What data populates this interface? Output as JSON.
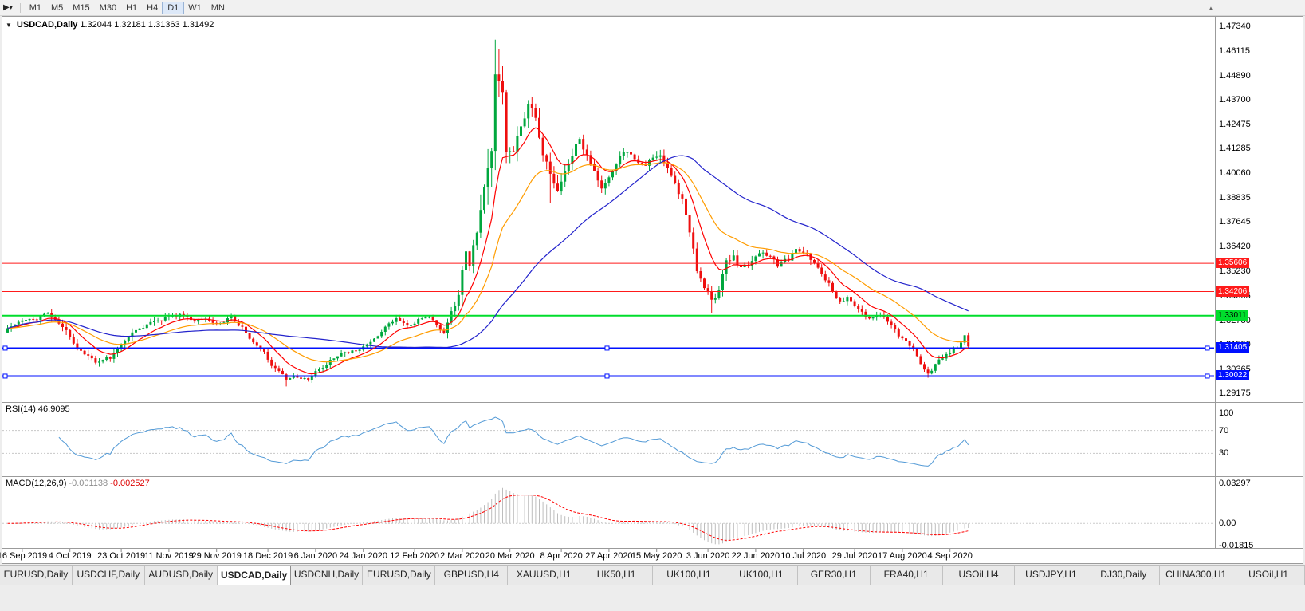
{
  "toolbar": {
    "timeframes": [
      "M1",
      "M5",
      "M15",
      "M30",
      "H1",
      "H4",
      "D1",
      "W1",
      "MN"
    ],
    "active_timeframe": "D1",
    "icons": {
      "handle": "▶",
      "caret": "▾",
      "overflow": "▲"
    }
  },
  "chart": {
    "menu_icon": "▼",
    "title": "USDCAD,Daily",
    "ohlc": {
      "open": "1.32044",
      "high": "1.32181",
      "low": "1.31363",
      "close": "1.31492"
    },
    "price_axis_labels": [
      "1.47340",
      "1.46115",
      "1.44890",
      "1.43700",
      "1.42475",
      "1.41285",
      "1.40060",
      "1.38835",
      "1.37645",
      "1.36420",
      "1.35230",
      "1.34005",
      "1.32780",
      "1.31590",
      "1.30365",
      "1.29175"
    ],
    "hlines": [
      {
        "label": "1.35606",
        "value": 1.35606,
        "color": "#ff1a1a",
        "width": 1,
        "text_color": "#ffffff",
        "handles": false
      },
      {
        "label": "1.34206",
        "value": 1.34206,
        "color": "#ff1a1a",
        "width": 1,
        "text_color": "#ffffff",
        "handles": false
      },
      {
        "label": "1.33011",
        "value": 1.33011,
        "color": "#00dd2c",
        "width": 2,
        "text_color": "#000000",
        "handles": false
      },
      {
        "label": "1.31405",
        "value": 1.31405,
        "color": "#0010ff",
        "width": 2,
        "text_color": "#ffffff",
        "handles": true
      },
      {
        "label": "1.30022",
        "value": 1.30022,
        "color": "#0010ff",
        "width": 2,
        "text_color": "#ffffff",
        "handles": true
      }
    ],
    "candles": {
      "count": 263,
      "up_color": "#00a73e",
      "down_color": "#ee0f0f",
      "last": {
        "open": 1.32044,
        "high": 1.32181,
        "low": 1.31363,
        "close": 1.31492
      },
      "wick_highs": [
        [
          125,
          1.376
        ],
        [
          133,
          1.4668
        ],
        [
          134,
          1.462
        ]
      ],
      "wick_lows": [
        [
          76,
          1.2951
        ],
        [
          148,
          1.386
        ],
        [
          192,
          1.3316
        ],
        [
          251,
          1.2994
        ]
      ],
      "anchors": [
        [
          0,
          1.3245,
          0.0045
        ],
        [
          4,
          1.329,
          0.0045
        ],
        [
          8,
          1.3268,
          0.0045
        ],
        [
          11,
          1.332,
          0.005
        ],
        [
          15,
          1.3262,
          0.005
        ],
        [
          19,
          1.314,
          0.005
        ],
        [
          24,
          1.3065,
          0.0045
        ],
        [
          28,
          1.3092,
          0.004
        ],
        [
          33,
          1.32,
          0.0045
        ],
        [
          38,
          1.3246,
          0.0045
        ],
        [
          43,
          1.3288,
          0.0045
        ],
        [
          47,
          1.33,
          0.004
        ],
        [
          51,
          1.3272,
          0.0038
        ],
        [
          54,
          1.3285,
          0.0035
        ],
        [
          58,
          1.3262,
          0.0035
        ],
        [
          61,
          1.329,
          0.0035
        ],
        [
          64,
          1.3246,
          0.0035
        ],
        [
          67,
          1.3162,
          0.004
        ],
        [
          70,
          1.3112,
          0.004
        ],
        [
          73,
          1.3038,
          0.004
        ],
        [
          76,
          1.2978,
          0.0035
        ],
        [
          79,
          1.2996,
          0.003
        ],
        [
          82,
          1.2988,
          0.003
        ],
        [
          85,
          1.3036,
          0.0035
        ],
        [
          88,
          1.308,
          0.0035
        ],
        [
          91,
          1.3106,
          0.0035
        ],
        [
          94,
          1.3122,
          0.0035
        ],
        [
          97,
          1.3146,
          0.0035
        ],
        [
          100,
          1.3186,
          0.0035
        ],
        [
          103,
          1.324,
          0.0035
        ],
        [
          106,
          1.3288,
          0.0035
        ],
        [
          109,
          1.3256,
          0.0035
        ],
        [
          112,
          1.3282,
          0.0035
        ],
        [
          115,
          1.33,
          0.0035
        ],
        [
          117,
          1.3262,
          0.004
        ],
        [
          119,
          1.3225,
          0.005
        ],
        [
          121,
          1.334,
          0.006
        ],
        [
          123,
          1.339,
          0.008
        ],
        [
          125,
          1.3655,
          0.015
        ],
        [
          126,
          1.358,
          0.014
        ],
        [
          128,
          1.3735,
          0.015
        ],
        [
          130,
          1.3985,
          0.018
        ],
        [
          132,
          1.416,
          0.02
        ],
        [
          133,
          1.456,
          0.022
        ],
        [
          134,
          1.448,
          0.019
        ],
        [
          135,
          1.443,
          0.017
        ],
        [
          136,
          1.41,
          0.016
        ],
        [
          138,
          1.4145,
          0.013
        ],
        [
          140,
          1.423,
          0.012
        ],
        [
          142,
          1.435,
          0.011
        ],
        [
          144,
          1.4275,
          0.01
        ],
        [
          146,
          1.409,
          0.01
        ],
        [
          148,
          1.3985,
          0.009
        ],
        [
          150,
          1.393,
          0.009
        ],
        [
          152,
          1.4015,
          0.008
        ],
        [
          154,
          1.412,
          0.0085
        ],
        [
          156,
          1.418,
          0.008
        ],
        [
          158,
          1.409,
          0.0075
        ],
        [
          160,
          1.404,
          0.007
        ],
        [
          162,
          1.3955,
          0.007
        ],
        [
          164,
          1.399,
          0.0065
        ],
        [
          166,
          1.407,
          0.0065
        ],
        [
          169,
          1.412,
          0.006
        ],
        [
          171,
          1.408,
          0.006
        ],
        [
          174,
          1.403,
          0.006
        ],
        [
          176,
          1.409,
          0.006
        ],
        [
          178,
          1.4115,
          0.006
        ],
        [
          180,
          1.402,
          0.006
        ],
        [
          182,
          1.395,
          0.006
        ],
        [
          184,
          1.388,
          0.0065
        ],
        [
          186,
          1.369,
          0.008
        ],
        [
          188,
          1.352,
          0.008
        ],
        [
          190,
          1.343,
          0.0075
        ],
        [
          192,
          1.339,
          0.007
        ],
        [
          194,
          1.3425,
          0.007
        ],
        [
          196,
          1.3555,
          0.008
        ],
        [
          198,
          1.3585,
          0.007
        ],
        [
          200,
          1.3535,
          0.006
        ],
        [
          202,
          1.3555,
          0.006
        ],
        [
          205,
          1.3615,
          0.0055
        ],
        [
          208,
          1.3585,
          0.0055
        ],
        [
          210,
          1.355,
          0.0055
        ],
        [
          213,
          1.358,
          0.0055
        ],
        [
          215,
          1.3618,
          0.0055
        ],
        [
          218,
          1.3592,
          0.005
        ],
        [
          221,
          1.3545,
          0.005
        ],
        [
          223,
          1.3495,
          0.005
        ],
        [
          225,
          1.3432,
          0.005
        ],
        [
          227,
          1.3385,
          0.005
        ],
        [
          229,
          1.3396,
          0.0045
        ],
        [
          231,
          1.3356,
          0.0045
        ],
        [
          233,
          1.331,
          0.0045
        ],
        [
          235,
          1.3286,
          0.0045
        ],
        [
          237,
          1.332,
          0.0045
        ],
        [
          239,
          1.329,
          0.0045
        ],
        [
          241,
          1.3246,
          0.0045
        ],
        [
          243,
          1.3196,
          0.0045
        ],
        [
          245,
          1.3166,
          0.0045
        ],
        [
          247,
          1.312,
          0.0045
        ],
        [
          249,
          1.3062,
          0.0045
        ],
        [
          251,
          1.302,
          0.004
        ],
        [
          253,
          1.3062,
          0.004
        ],
        [
          255,
          1.3092,
          0.004
        ],
        [
          257,
          1.3112,
          0.004
        ],
        [
          259,
          1.314,
          0.004
        ],
        [
          261,
          1.3186,
          0.0042
        ],
        [
          262,
          1.315,
          0.004
        ]
      ]
    },
    "moving_averages": [
      {
        "name": "ma-fast",
        "type": "ema",
        "period": 10,
        "color": "#ff0000"
      },
      {
        "name": "ma-mid",
        "type": "ema",
        "period": 25,
        "color": "#ff9c00"
      },
      {
        "name": "ma-slow",
        "type": "sma",
        "period": 55,
        "color": "#2323cc"
      }
    ],
    "date_labels": [
      {
        "text": "16 Sep 2019",
        "i": 4
      },
      {
        "text": "4 Oct 2019",
        "i": 17
      },
      {
        "text": "23 Oct 2019",
        "i": 31
      },
      {
        "text": "11 Nov 2019",
        "i": 44
      },
      {
        "text": "29 Nov 2019",
        "i": 57
      },
      {
        "text": "18 Dec 2019",
        "i": 71
      },
      {
        "text": "6 Jan 2020",
        "i": 84
      },
      {
        "text": "24 Jan 2020",
        "i": 97
      },
      {
        "text": "12 Feb 2020",
        "i": 111
      },
      {
        "text": "2 Mar 2020",
        "i": 124
      },
      {
        "text": "20 Mar 2020",
        "i": 137
      },
      {
        "text": "8 Apr 2020",
        "i": 151
      },
      {
        "text": "27 Apr 2020",
        "i": 164
      },
      {
        "text": "15 May 2020",
        "i": 177
      },
      {
        "text": "3 Jun 2020",
        "i": 191
      },
      {
        "text": "22 Jun 2020",
        "i": 204
      },
      {
        "text": "10 Jul 2020",
        "i": 217
      },
      {
        "text": "29 Jul 2020",
        "i": 231
      },
      {
        "text": "17 Aug 2020",
        "i": 244
      },
      {
        "text": "4 Sep 2020",
        "i": 257
      }
    ]
  },
  "rsi": {
    "label": "RSI(14)",
    "value": "46.9095",
    "period": 14,
    "axis_labels": [
      "100",
      "70",
      "30"
    ],
    "levels": [
      70,
      30
    ],
    "color": "#539ad6"
  },
  "macd": {
    "label": "MACD(12,26,9)",
    "main_value": "-0.001138",
    "signal_value": "-0.002527",
    "fast": 12,
    "slow": 26,
    "signal": 9,
    "axis_labels": [
      "0.03297",
      "0.00",
      "-0.01815"
    ],
    "hist_color": "#bdbdbd",
    "signal_color": "#ff0000"
  },
  "tabs": {
    "active_index": 3,
    "items": [
      "EURUSD,Daily",
      "USDCHF,Daily",
      "AUDUSD,Daily",
      "USDCAD,Daily",
      "USDCNH,Daily",
      "EURUSD,Daily",
      "GBPUSD,H4",
      "XAUUSD,H1",
      "HK50,H1",
      "UK100,H1",
      "UK100,H1",
      "GER30,H1",
      "FRA40,H1",
      "USOil,H4",
      "USDJPY,H1",
      "DJ30,Daily",
      "CHINA300,H1",
      "USOil,H1"
    ]
  }
}
